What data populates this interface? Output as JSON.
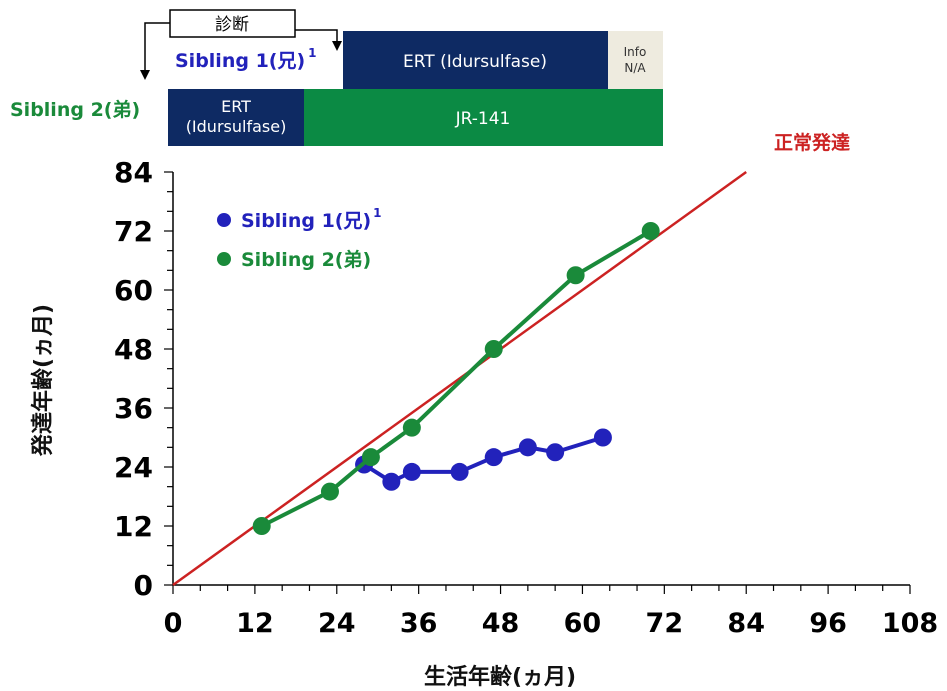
{
  "timeline": {
    "diagnosis_label": "診断",
    "sibling1_label": "Sibling 1(兄)",
    "sibling1_sup": "1",
    "sibling2_label": "Sibling 2(弟)",
    "bar1_ert": "ERT (Idursulfase)",
    "bar1_info_line1": "Info",
    "bar1_info_line2": "N/A",
    "bar2_ert_line1": "ERT",
    "bar2_ert_line2": "(Idursulfase)",
    "bar2_jr": "JR-141",
    "colors": {
      "navy": "#0e2a63",
      "green": "#0b8a44",
      "info_bg": "#eeebdf"
    }
  },
  "chart_data": {
    "type": "line",
    "xlabel": "生活年齢(ヵ月)",
    "ylabel": "発達年齢(ヵ月)",
    "xlim": [
      0,
      108
    ],
    "ylim": [
      0,
      84
    ],
    "x_ticks": [
      "0",
      "12",
      "24",
      "36",
      "48",
      "60",
      "72",
      "84",
      "96",
      "108"
    ],
    "y_ticks": [
      "0",
      "12",
      "24",
      "36",
      "48",
      "60",
      "72",
      "84"
    ],
    "reference_line": {
      "label": "正常発達",
      "points": [
        [
          0,
          0
        ],
        [
          84,
          84
        ]
      ],
      "color": "#cc2222"
    },
    "legend_position": "top-left",
    "series": [
      {
        "name": "Sibling 1(兄)",
        "name_sup": "1",
        "color": "#2222bb",
        "points": [
          [
            28,
            24.5
          ],
          [
            32,
            21
          ],
          [
            35,
            23
          ],
          [
            42,
            23
          ],
          [
            47,
            26
          ],
          [
            52,
            28
          ],
          [
            56,
            27
          ],
          [
            63,
            30
          ]
        ]
      },
      {
        "name": "Sibling 2(弟)",
        "color": "#1a8a3a",
        "points": [
          [
            13,
            12
          ],
          [
            23,
            19
          ],
          [
            29,
            26
          ],
          [
            35,
            32
          ],
          [
            47,
            48
          ],
          [
            59,
            63
          ],
          [
            70,
            72
          ]
        ]
      }
    ]
  }
}
